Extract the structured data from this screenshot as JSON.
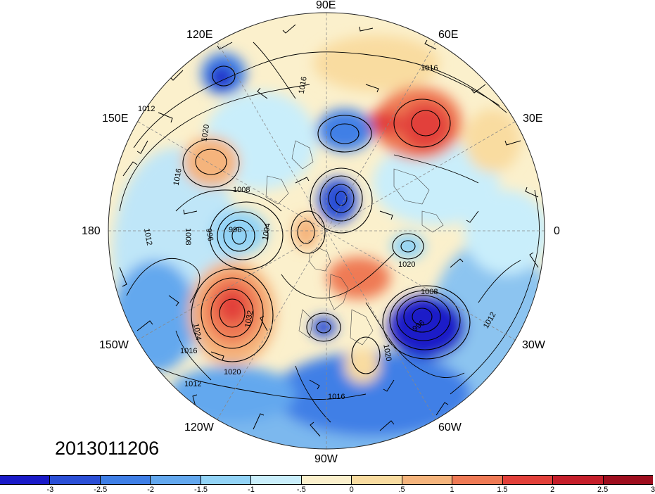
{
  "timestamp": "2013011206",
  "longitude_labels": {
    "n90e": "90E",
    "n60e": "60E",
    "n30e": "30E",
    "n0": "0",
    "n30w": "30W",
    "n60w": "60W",
    "n90w": "90W",
    "n120w": "120W",
    "n150w": "150W",
    "n180": "180",
    "n150e": "150E",
    "n120e": "120E"
  },
  "isobar_labels": [
    {
      "text": "1016"
    },
    {
      "text": "1016"
    },
    {
      "text": "1016"
    },
    {
      "text": "1016"
    },
    {
      "text": "1012"
    },
    {
      "text": "1012"
    },
    {
      "text": "1012"
    },
    {
      "text": "1012"
    },
    {
      "text": "1020"
    },
    {
      "text": "1020"
    },
    {
      "text": "1020"
    },
    {
      "text": "1020"
    },
    {
      "text": "1008"
    },
    {
      "text": "1008"
    },
    {
      "text": "1008"
    },
    {
      "text": "996"
    },
    {
      "text": "996"
    },
    {
      "text": "996"
    },
    {
      "text": "1024"
    },
    {
      "text": "1032"
    },
    {
      "text": "1004"
    },
    {
      "text": "1016"
    }
  ],
  "colorbar": {
    "colors": [
      "#1a1ac8",
      "#2b4fd6",
      "#3f7fe6",
      "#63a8ee",
      "#92d3f6",
      "#c9eefb",
      "#fbf0cc",
      "#f9dca0",
      "#f5b47c",
      "#ef7a55",
      "#e2403a",
      "#c51e2a",
      "#9e0e1e"
    ],
    "tick_labels": [
      "-3",
      "-2.5",
      "-2",
      "-1.5",
      "-1",
      "-.5",
      "0",
      ".5",
      "1",
      "1.5",
      "2",
      "2.5",
      "3"
    ]
  }
}
